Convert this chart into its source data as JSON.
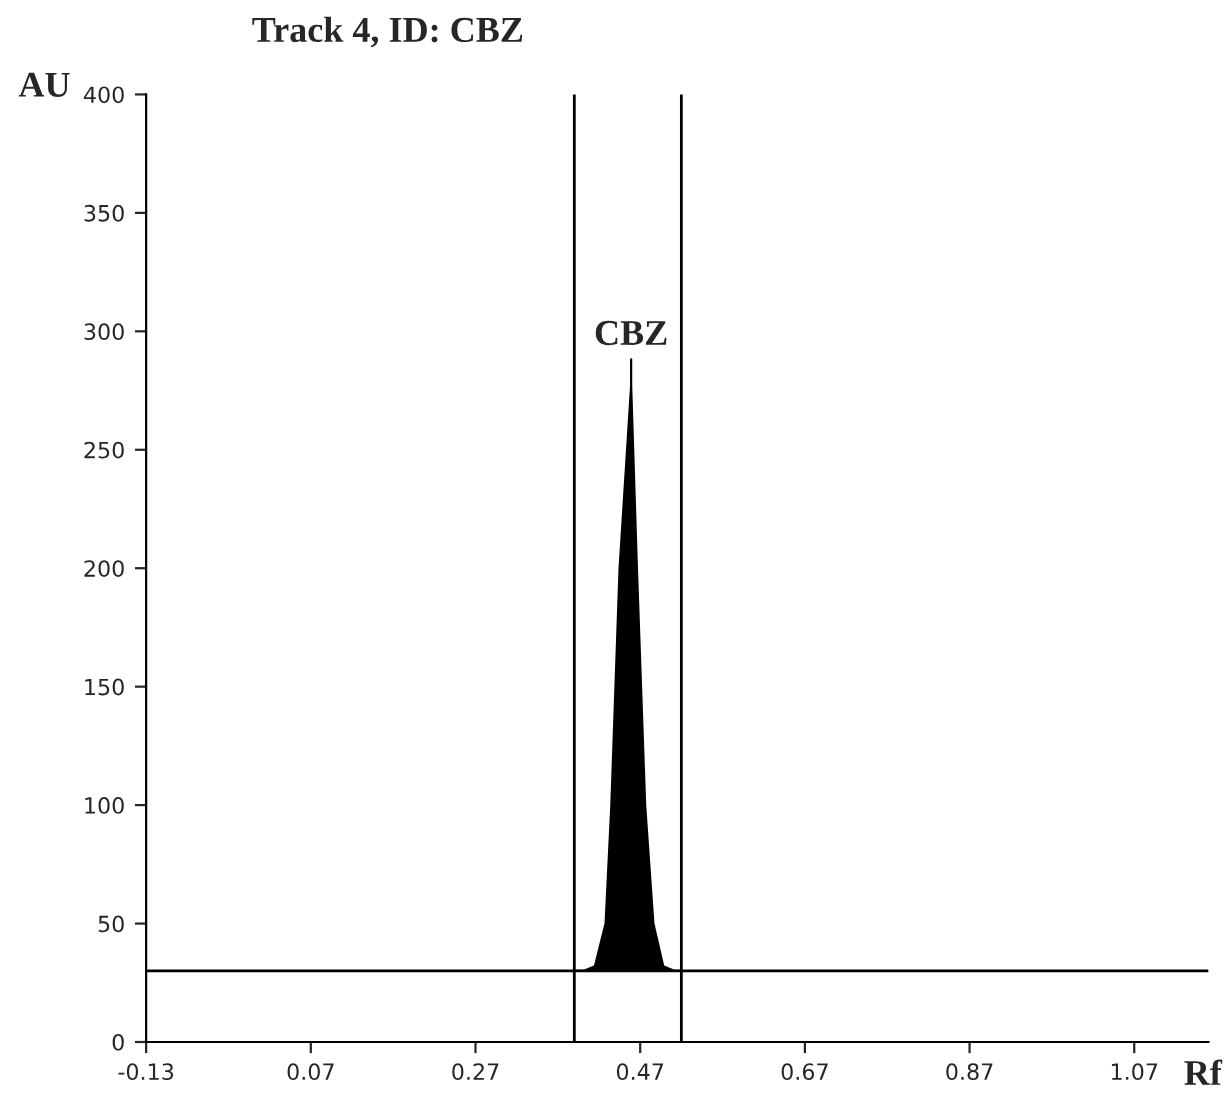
{
  "chart_data": {
    "type": "area",
    "title": "Track 4, ID: CBZ",
    "xlabel": "Rf",
    "ylabel": "AU",
    "series": [
      {
        "color": "#000000",
        "x": [
          0.39,
          0.401,
          0.415,
          0.428,
          0.435,
          0.445,
          0.459,
          0.466,
          0.476,
          0.486,
          0.498,
          0.512,
          0.52
        ],
        "values": [
          30,
          30,
          32,
          50,
          100,
          200,
          277,
          200,
          100,
          50,
          32,
          30,
          30
        ]
      }
    ],
    "annotations": [
      {
        "text": "CBZ",
        "x": 0.459,
        "y": 277
      }
    ],
    "ref_lines": [
      {
        "axis": "y",
        "value": 30,
        "color": "#000000"
      },
      {
        "axis": "x",
        "value": 0.39,
        "color": "#000000"
      },
      {
        "axis": "x",
        "value": 0.52,
        "color": "#000000"
      }
    ],
    "xlim": [
      -0.13,
      1.16
    ],
    "xticks": [
      -0.13,
      0.07,
      0.27,
      0.47,
      0.67,
      0.87,
      1.07
    ],
    "ylim": [
      0,
      400
    ],
    "yticks": [
      0,
      50,
      100,
      150,
      200,
      250,
      300,
      350,
      400
    ],
    "grid": false,
    "legend": false
  }
}
